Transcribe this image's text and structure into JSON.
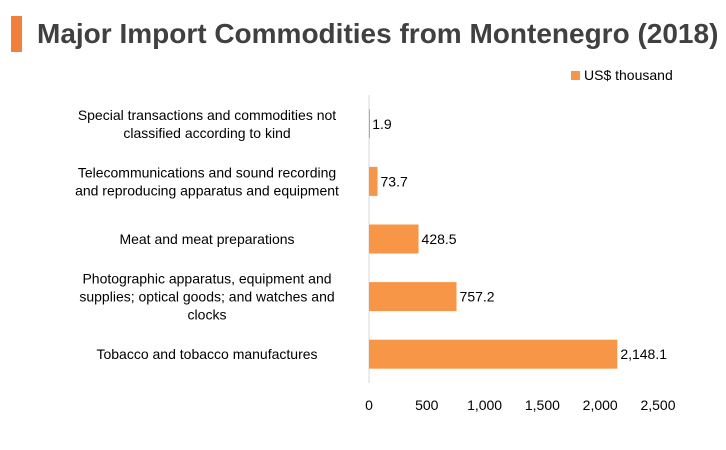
{
  "title": "Major Import Commodities from Montenegro (2018)",
  "colors": {
    "accent": "#f0803c",
    "bar": "#f79646",
    "axis": "#d9d9d9"
  },
  "chart_data": {
    "type": "bar",
    "orientation": "horizontal",
    "title": "Major Import Commodities from Montenegro (2018)",
    "categories": [
      [
        "Special transactions and commodities not",
        "classified according to kind"
      ],
      [
        "Telecommunications and sound recording",
        "and reproducing apparatus and equipment"
      ],
      [
        "Meat and meat preparations"
      ],
      [
        "Photographic apparatus, equipment and",
        "supplies; optical goods; and watches and",
        "clocks"
      ],
      [
        "Tobacco and tobacco manufactures"
      ]
    ],
    "series": [
      {
        "name": "US$ thousand",
        "values": [
          1.9,
          73.7,
          428.5,
          757.2,
          2148.1
        ],
        "labels": [
          "1.9",
          "73.7",
          "428.5",
          "757.2",
          "2,148.1"
        ]
      }
    ],
    "xlim": [
      0,
      2500
    ],
    "xticks": [
      0,
      500,
      1000,
      1500,
      2000,
      2500
    ],
    "xtick_labels": [
      "0",
      "500",
      "1,000",
      "1,500",
      "2,000",
      "2,500"
    ],
    "legend_position": "top-right",
    "grid": false
  }
}
